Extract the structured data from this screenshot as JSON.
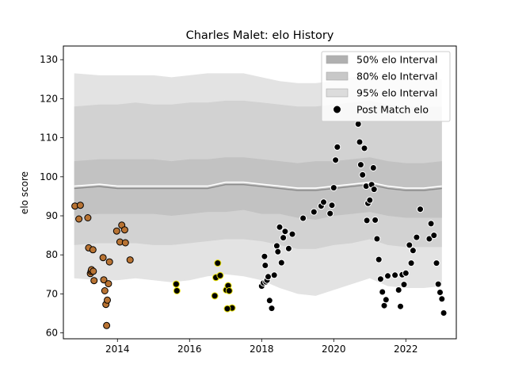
{
  "chart_data": {
    "type": "scatter",
    "title": "Charles Malet: elo History",
    "xlabel": "",
    "ylabel": "elo score",
    "xlim": [
      2012.5,
      2023.4
    ],
    "ylim": [
      58.5,
      133.5
    ],
    "xticks": [
      "2014",
      "2016",
      "2018",
      "2020",
      "2022"
    ],
    "xtick_values": [
      2014,
      2016,
      2018,
      2020,
      2022
    ],
    "yticks": [
      "60",
      "70",
      "80",
      "90",
      "100",
      "110",
      "120",
      "130"
    ],
    "ytick_values": [
      60,
      70,
      80,
      90,
      100,
      110,
      120,
      130
    ],
    "grid": false,
    "legend": {
      "placement": "top-right",
      "entries": [
        "50% elo Interval",
        "80% elo Interval",
        "95% elo Interval",
        "Post Match elo"
      ]
    },
    "bands": {
      "x": [
        2012.8,
        2013.5,
        2014.0,
        2014.5,
        2015.0,
        2015.5,
        2016.0,
        2016.5,
        2017.0,
        2017.5,
        2018.0,
        2018.5,
        2019.0,
        2019.5,
        2020.0,
        2020.5,
        2021.0,
        2021.5,
        2022.0,
        2022.5,
        2023.0
      ],
      "median": [
        97.0,
        97.5,
        97.0,
        97.0,
        97.0,
        97.0,
        97.0,
        97.0,
        98.0,
        98.0,
        97.5,
        97.0,
        96.5,
        96.5,
        97.0,
        97.5,
        98.0,
        97.0,
        96.5,
        96.5,
        97.0
      ],
      "q50_low": [
        90.0,
        90.5,
        90.5,
        90.5,
        90.5,
        90.0,
        90.5,
        91.0,
        91.0,
        91.5,
        90.5,
        90.5,
        89.5,
        89.0,
        90.0,
        90.5,
        91.0,
        90.0,
        89.5,
        89.5,
        89.5
      ],
      "q50_high": [
        104.0,
        104.5,
        104.5,
        104.5,
        104.5,
        104.0,
        104.5,
        104.5,
        105.0,
        105.0,
        104.5,
        104.0,
        103.5,
        104.0,
        104.0,
        104.5,
        105.0,
        104.0,
        103.5,
        103.5,
        104.0
      ],
      "q80_low": [
        82.5,
        83.0,
        83.0,
        83.0,
        82.5,
        82.5,
        83.0,
        83.5,
        84.0,
        84.0,
        83.5,
        82.5,
        81.5,
        81.5,
        82.5,
        83.0,
        84.0,
        82.5,
        82.0,
        82.0,
        82.0
      ],
      "q80_high": [
        118.0,
        118.5,
        118.5,
        119.0,
        118.5,
        118.5,
        119.0,
        119.0,
        119.5,
        119.5,
        119.0,
        118.5,
        118.0,
        118.0,
        118.5,
        119.0,
        119.5,
        118.5,
        118.0,
        118.0,
        118.0
      ],
      "q95_low": [
        74.0,
        73.5,
        73.5,
        74.0,
        73.5,
        73.0,
        73.5,
        74.5,
        75.0,
        74.5,
        73.5,
        71.5,
        70.0,
        69.5,
        71.0,
        72.5,
        74.0,
        72.0,
        71.5,
        71.5,
        72.0
      ],
      "q95_high": [
        126.5,
        126.0,
        126.0,
        126.0,
        126.0,
        125.5,
        126.0,
        126.5,
        126.5,
        126.5,
        125.5,
        124.5,
        124.0,
        124.0,
        124.5,
        125.5,
        126.0,
        125.5,
        125.0,
        125.0,
        125.0
      ]
    },
    "series": [
      {
        "name": "",
        "color": "#b87333",
        "edge": "#000000",
        "x": [
          2012.82,
          2012.93,
          2012.97,
          2013.18,
          2013.2,
          2013.25,
          2013.27,
          2013.28,
          2013.32,
          2013.33,
          2013.35,
          2013.6,
          2013.62,
          2013.65,
          2013.68,
          2013.72,
          2013.75,
          2013.78,
          2013.98,
          2014.07,
          2014.12,
          2014.2,
          2014.22,
          2014.35,
          2013.7
        ],
        "y": [
          92.5,
          89.2,
          92.7,
          89.5,
          81.8,
          75.2,
          75.8,
          76.2,
          81.3,
          75.8,
          73.4,
          79.3,
          73.6,
          70.8,
          67.3,
          68.4,
          72.6,
          78.2,
          86.1,
          83.3,
          87.6,
          86.4,
          83.1,
          78.7,
          61.9
        ]
      },
      {
        "name": "",
        "color": "#000000",
        "edge": "#e8e000",
        "x": [
          2015.63,
          2015.65,
          2016.7,
          2016.73,
          2016.78,
          2016.85,
          2017.02,
          2017.07,
          2017.1,
          2017.18,
          2017.05
        ],
        "y": [
          72.5,
          70.8,
          69.5,
          74.2,
          77.9,
          74.7,
          71.0,
          72.1,
          70.8,
          66.4,
          66.2
        ]
      },
      {
        "name": "Post Match elo",
        "color": "#000000",
        "edge": "#ffffff",
        "x": [
          2018.0,
          2018.05,
          2018.08,
          2018.1,
          2018.12,
          2018.15,
          2018.18,
          2018.22,
          2018.28,
          2018.35,
          2018.42,
          2018.45,
          2018.5,
          2018.55,
          2018.6,
          2018.65,
          2018.75,
          2018.85,
          2019.15,
          2019.45,
          2019.65,
          2019.72,
          2019.9,
          2019.95,
          2020.0,
          2020.05,
          2020.1,
          2020.68,
          2020.72,
          2020.75,
          2020.8,
          2020.85,
          2020.9,
          2020.92,
          2020.95,
          2021.0,
          2021.05,
          2021.1,
          2021.12,
          2021.15,
          2021.2,
          2021.25,
          2021.3,
          2021.35,
          2021.4,
          2021.45,
          2021.5,
          2021.7,
          2021.8,
          2021.85,
          2021.9,
          2021.95,
          2022.0,
          2022.1,
          2022.15,
          2022.2,
          2022.3,
          2022.4,
          2022.65,
          2022.7,
          2022.78,
          2022.85,
          2022.9,
          2022.95,
          2023.0,
          2023.05
        ],
        "y": [
          72.0,
          72.8,
          79.6,
          77.3,
          73.1,
          73.5,
          74.4,
          68.3,
          66.3,
          74.8,
          82.3,
          80.8,
          87.1,
          78.0,
          84.4,
          86.0,
          81.6,
          85.3,
          89.4,
          91.0,
          92.5,
          93.5,
          90.6,
          92.7,
          97.2,
          104.3,
          107.6,
          113.5,
          108.9,
          103.1,
          100.5,
          107.3,
          97.6,
          88.8,
          93.2,
          94.0,
          98.0,
          102.3,
          96.8,
          88.9,
          84.1,
          78.8,
          73.8,
          70.5,
          67.0,
          68.5,
          74.6,
          74.8,
          71.0,
          66.8,
          74.9,
          72.4,
          75.3,
          82.5,
          77.9,
          81.1,
          84.5,
          91.7,
          84.1,
          88.0,
          85.0,
          77.9,
          72.5,
          70.4,
          68.7,
          65.1
        ]
      }
    ]
  }
}
